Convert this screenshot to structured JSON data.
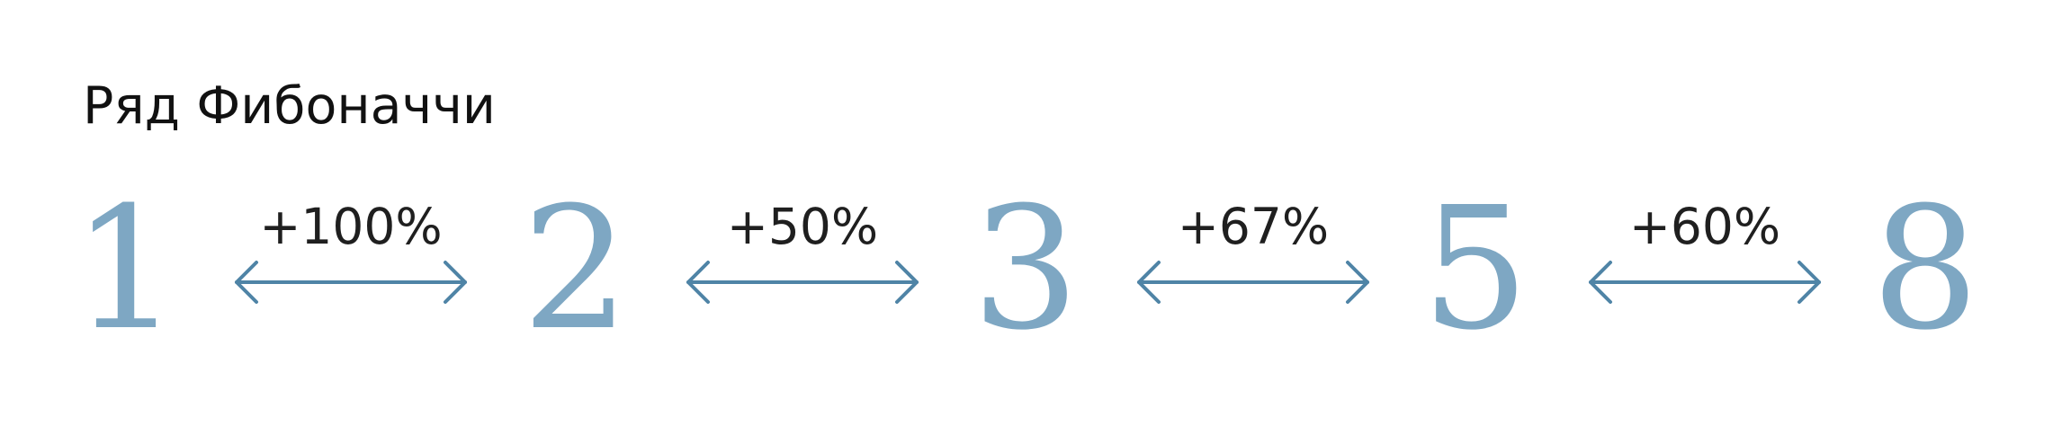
{
  "title": "Ряд Фибоначчи",
  "numbers": [
    "1",
    "2",
    "3",
    "5",
    "8"
  ],
  "steps": [
    "+100%",
    "+50%",
    "+67%",
    "+60%"
  ],
  "colors": {
    "number": "#7ea7c3",
    "arrow": "#4f84a6",
    "text": "#1f1f1f"
  }
}
